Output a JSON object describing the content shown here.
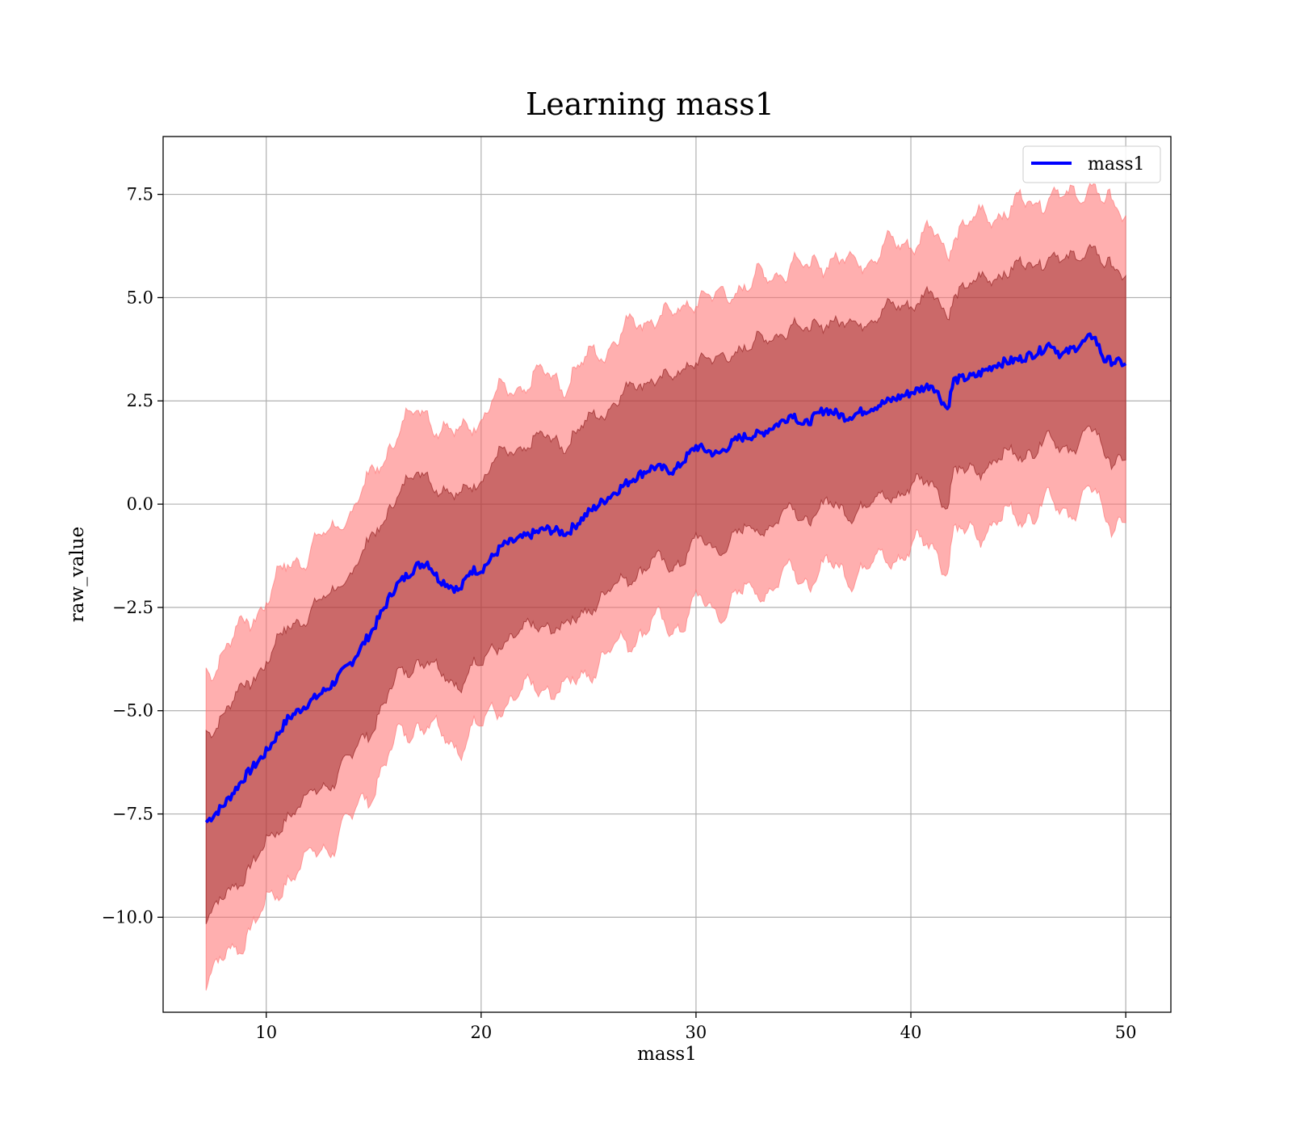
{
  "chart_data": {
    "type": "line",
    "title": "Learning mass1",
    "xlabel": "mass1",
    "ylabel": "raw_value",
    "xlim": [
      5.2,
      52.1
    ],
    "ylim": [
      -12.3,
      8.9
    ],
    "xticks": [
      10,
      20,
      30,
      40,
      50
    ],
    "xtick_labels": [
      "10",
      "20",
      "30",
      "40",
      "50"
    ],
    "yticks": [
      7.5,
      5.0,
      2.5,
      0.0,
      -2.5,
      -5.0,
      -7.5,
      -10.0
    ],
    "ytick_labels": [
      "7.5",
      "5.0",
      "2.5",
      "0.0",
      "−2.5",
      "−5.0",
      "−7.5",
      "−10.0"
    ],
    "grid": true,
    "legend_position": "top-right",
    "series": [
      {
        "name": "mass1",
        "color": "#0000ff",
        "x": [
          7.2,
          8,
          9,
          10,
          11,
          12,
          13,
          14,
          15,
          16,
          17,
          17.5,
          18,
          19,
          19.5,
          20,
          21,
          22,
          23,
          24,
          25,
          26,
          27,
          28,
          29,
          30,
          31,
          32,
          33,
          34,
          34.5,
          35,
          36,
          37,
          38,
          39,
          40,
          41,
          41.7,
          42,
          43,
          44,
          45,
          46,
          46.5,
          47,
          48,
          48.5,
          49,
          50
        ],
        "y": [
          -7.7,
          -7.3,
          -6.6,
          -6.0,
          -5.2,
          -4.8,
          -4.4,
          -3.8,
          -3.0,
          -2.0,
          -1.5,
          -1.4,
          -1.8,
          -2.1,
          -1.6,
          -1.6,
          -1.0,
          -0.8,
          -0.6,
          -0.7,
          -0.2,
          0.2,
          0.6,
          0.9,
          0.8,
          1.4,
          1.2,
          1.6,
          1.7,
          2.0,
          2.2,
          1.9,
          2.3,
          2.1,
          2.3,
          2.5,
          2.7,
          2.9,
          2.3,
          3.0,
          3.1,
          3.4,
          3.5,
          3.7,
          3.9,
          3.6,
          3.9,
          4.1,
          3.5,
          3.4
        ]
      }
    ],
    "bands": [
      {
        "kind": "outer",
        "color": "#ff6e6e",
        "opacity": 0.55,
        "lower_offset": -3.8,
        "upper_offset": 3.7
      },
      {
        "kind": "inner",
        "color": "#8b1515",
        "opacity": 0.45,
        "lower_offset": -2.3,
        "upper_offset": 2.2
      }
    ]
  }
}
